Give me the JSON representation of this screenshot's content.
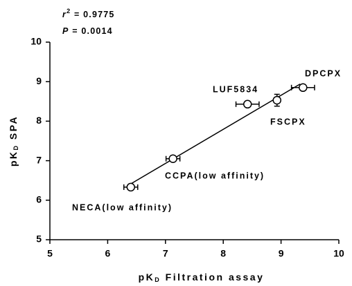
{
  "chart_data": {
    "type": "scatter",
    "annotations": [
      [
        "r",
        "2",
        " = 0.9775"
      ],
      [
        "P",
        "",
        " = 0.0014"
      ]
    ],
    "x_label": [
      "pK",
      "D",
      " Filtration  assay"
    ],
    "y_label": [
      "pK",
      "D",
      " SPA"
    ],
    "xlim": [
      5,
      10
    ],
    "xticks": [
      5,
      6,
      7,
      8,
      9,
      10
    ],
    "ylim": [
      5,
      10
    ],
    "yticks": [
      5,
      6,
      7,
      8,
      9,
      10
    ],
    "regression_line": true,
    "color": "#000000",
    "points": [
      {
        "name": "NECA(low affinity)",
        "x": 6.4,
        "y": 6.33,
        "x_err": 0.12,
        "y_err": null
      },
      {
        "name": "CCPA(low affinity)",
        "x": 7.13,
        "y": 7.05,
        "x_err": 0.12,
        "y_err": 0.05
      },
      {
        "name": "LUF5834",
        "x": 8.42,
        "y": 8.43,
        "x_err": 0.2,
        "y_err": null
      },
      {
        "name": "FSCPX",
        "x": 8.93,
        "y": 8.53,
        "x_err": 0.05,
        "y_err": 0.15
      },
      {
        "name": "DPCPX",
        "x": 9.38,
        "y": 8.85,
        "x_err": 0.2,
        "y_err": 0.05
      }
    ]
  }
}
